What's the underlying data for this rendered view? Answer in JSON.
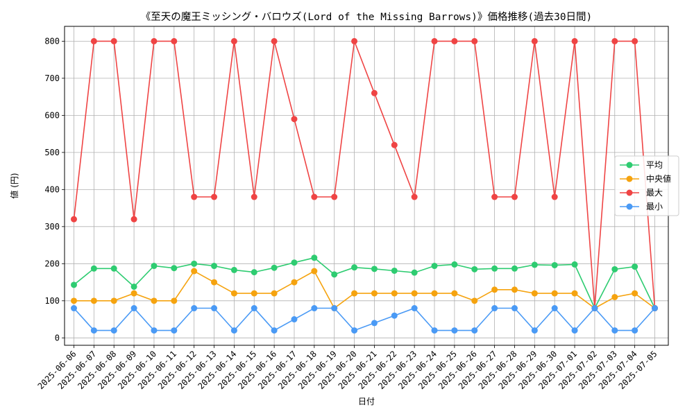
{
  "chart_data": {
    "type": "line",
    "title": "《至天の魔王ミッシング・バロウズ(Lord of the Missing Barrows)》価格推移(過去30日間)",
    "xlabel": "日付",
    "ylabel": "値 (円)",
    "ylim": [
      -20,
      840
    ],
    "yticks": [
      0,
      100,
      200,
      300,
      400,
      500,
      600,
      700,
      800
    ],
    "grid": true,
    "legend_position": "center-right",
    "categories": [
      "2025-06-06",
      "2025-06-07",
      "2025-06-08",
      "2025-06-09",
      "2025-06-10",
      "2025-06-11",
      "2025-06-12",
      "2025-06-13",
      "2025-06-14",
      "2025-06-15",
      "2025-06-16",
      "2025-06-17",
      "2025-06-18",
      "2025-06-19",
      "2025-06-20",
      "2025-06-21",
      "2025-06-22",
      "2025-06-23",
      "2025-06-24",
      "2025-06-25",
      "2025-06-26",
      "2025-06-27",
      "2025-06-28",
      "2025-06-29",
      "2025-06-30",
      "2025-07-01",
      "2025-07-02",
      "2025-07-03",
      "2025-07-04",
      "2025-07-05"
    ],
    "series": [
      {
        "name": "平均",
        "color": "#2ecc71",
        "values": [
          143,
          187,
          187,
          138,
          194,
          188,
          200,
          194,
          183,
          177,
          189,
          203,
          216,
          171,
          190,
          186,
          181,
          176,
          194,
          198,
          185,
          187,
          187,
          197,
          196,
          198,
          80,
          185,
          192,
          80
        ]
      },
      {
        "name": "中央値",
        "color": "#f5a30f",
        "values": [
          100,
          100,
          100,
          120,
          100,
          100,
          180,
          150,
          120,
          120,
          120,
          150,
          180,
          80,
          120,
          120,
          120,
          120,
          120,
          120,
          100,
          130,
          130,
          120,
          120,
          120,
          80,
          110,
          120,
          80
        ]
      },
      {
        "name": "最大",
        "color": "#ef4444",
        "values": [
          320,
          800,
          800,
          320,
          800,
          800,
          380,
          380,
          800,
          380,
          800,
          590,
          380,
          380,
          800,
          660,
          520,
          380,
          800,
          800,
          800,
          380,
          380,
          800,
          380,
          800,
          80,
          800,
          800,
          80
        ]
      },
      {
        "name": "最小",
        "color": "#4a9af5",
        "values": [
          80,
          20,
          20,
          80,
          20,
          20,
          80,
          80,
          20,
          80,
          20,
          50,
          80,
          80,
          20,
          40,
          60,
          80,
          20,
          20,
          20,
          80,
          80,
          20,
          80,
          20,
          80,
          20,
          20,
          80
        ]
      }
    ]
  }
}
